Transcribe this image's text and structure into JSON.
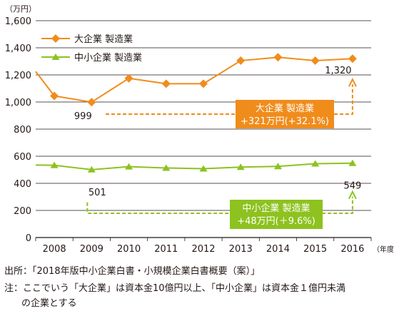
{
  "chart_data": {
    "type": "line",
    "unit_label": "（万円）",
    "x_unit_label": "（年度）",
    "categories": [
      "2008",
      "2009",
      "2010",
      "2011",
      "2012",
      "2013",
      "2014",
      "2015",
      "2016"
    ],
    "yticks": [
      "0",
      "200",
      "400",
      "600",
      "800",
      "1,000",
      "1,200",
      "1,400",
      "1,600"
    ],
    "ylim": [
      0,
      1600
    ],
    "grid": true,
    "legend_position": "top-left",
    "series": [
      {
        "name": "大企業 製造業",
        "color": "#f08c1c",
        "marker": "diamond",
        "start_value": 1225,
        "values": [
          1045,
          999,
          1175,
          1135,
          1135,
          1305,
          1330,
          1305,
          1320
        ]
      },
      {
        "name": "中小企業 製造業",
        "color": "#8dc21f",
        "marker": "triangle",
        "start_value": 535,
        "values": [
          533,
          501,
          523,
          513,
          508,
          520,
          525,
          545,
          549
        ]
      }
    ],
    "annotations": {
      "large_start_label": "999",
      "large_end_label": "1,320",
      "large_box_line1": "大企業 製造業",
      "large_box_line2": "+321万円(+32.1%)",
      "small_start_label": "501",
      "small_end_label": "549",
      "small_box_line1": "中小企業 製造業",
      "small_box_line2": "+48万円(＋9.6%)"
    }
  },
  "notes": {
    "source": "出所：「2018年版中小企業白書・小規模企業白書概要（案）」",
    "note_line1": "注：ここでいう「大企業」は資本金10億円以上、「中小企業」は資本金１億円未満",
    "note_line2": "の企業とする"
  }
}
